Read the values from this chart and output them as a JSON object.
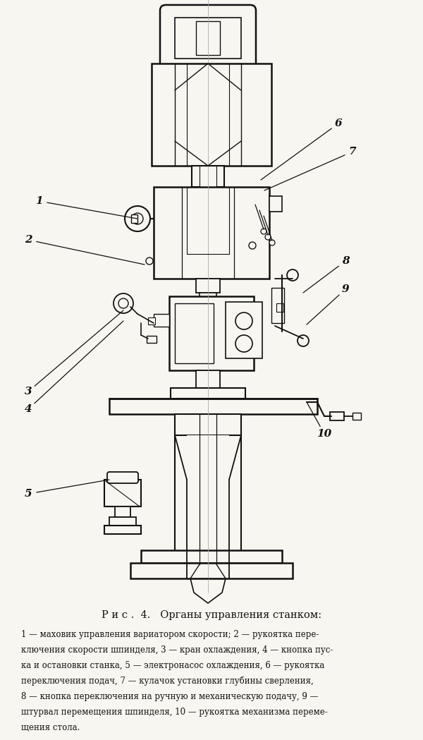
{
  "bg_color": "#f8f6f0",
  "line_color": "#111111",
  "title": "Р и с .  4.   Органы управления станком:",
  "caption_lines": [
    "1 — маховик управления вариатором скорости; 2 — рукоятка пере-",
    "ключения скорости шпинделя, 3 — кран охлаждения, 4 — кнопка пус-",
    "ка и остановки станка, 5 — электронасос охлаждения, 6 — рукоятка",
    "переключения подач, 7 — кулачок установки глубины сверления,",
    "8 — кнопка переключения на ручную и механическую подачу, 9 —",
    "штурвал перемещения шпинделя, 10 — рукоятка механизма переме-",
    "щения стола."
  ],
  "annotations": [
    [
      "1",
      55,
      285,
      195,
      310
    ],
    [
      "2",
      40,
      340,
      205,
      375
    ],
    [
      "3",
      40,
      555,
      175,
      440
    ],
    [
      "4",
      40,
      580,
      175,
      455
    ],
    [
      "5",
      40,
      700,
      155,
      680
    ],
    [
      "6",
      480,
      175,
      370,
      255
    ],
    [
      "7",
      500,
      215,
      375,
      270
    ],
    [
      "8",
      490,
      370,
      430,
      415
    ],
    [
      "9",
      490,
      410,
      435,
      460
    ],
    [
      "10",
      460,
      615,
      435,
      570
    ]
  ]
}
